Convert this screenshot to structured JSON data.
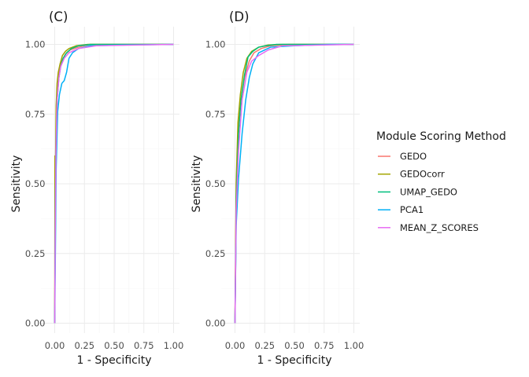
{
  "chart_data": [
    {
      "type": "line",
      "panel_tag": "(C)",
      "xlabel": "1 - Specificity",
      "ylabel": "Sensitivity",
      "xlim": [
        0,
        1
      ],
      "ylim": [
        0,
        1
      ],
      "x_ticks": [
        "0.00",
        "0.25",
        "0.50",
        "0.75",
        "1.00"
      ],
      "y_ticks": [
        "0.00",
        "0.25",
        "0.50",
        "0.75",
        "1.00"
      ],
      "grid": true,
      "series": [
        {
          "name": "GEDO",
          "x": [
            0,
            0.003,
            0.008,
            0.015,
            0.025,
            0.04,
            0.06,
            0.09,
            0.13,
            0.2,
            0.3,
            1
          ],
          "y": [
            0,
            0.28,
            0.48,
            0.74,
            0.85,
            0.91,
            0.94,
            0.965,
            0.98,
            0.99,
            1.0,
            1.0
          ]
        },
        {
          "name": "GEDOcorr",
          "x": [
            0,
            0.002,
            0.006,
            0.012,
            0.02,
            0.03,
            0.045,
            0.065,
            0.09,
            0.12,
            0.18,
            0.28,
            1
          ],
          "y": [
            0,
            0.6,
            0.55,
            0.78,
            0.86,
            0.9,
            0.93,
            0.96,
            0.975,
            0.985,
            0.995,
            1.0,
            1.0
          ]
        },
        {
          "name": "UMAP_GEDO",
          "x": [
            0,
            0.004,
            0.01,
            0.02,
            0.035,
            0.05,
            0.07,
            0.1,
            0.14,
            0.2,
            0.3,
            1
          ],
          "y": [
            0,
            0.35,
            0.6,
            0.8,
            0.88,
            0.92,
            0.95,
            0.97,
            0.985,
            0.995,
            1.0,
            1.0
          ]
        },
        {
          "name": "PCA1",
          "x": [
            0,
            0.005,
            0.012,
            0.025,
            0.04,
            0.06,
            0.08,
            0.1,
            0.12,
            0.15,
            0.2,
            0.3,
            0.6,
            1
          ],
          "y": [
            0,
            0.22,
            0.55,
            0.76,
            0.82,
            0.86,
            0.87,
            0.9,
            0.95,
            0.97,
            0.985,
            0.995,
            0.998,
            1.0
          ]
        },
        {
          "name": "MEAN_Z_SCORES",
          "x": [
            0,
            0.004,
            0.01,
            0.02,
            0.035,
            0.05,
            0.08,
            0.12,
            0.2,
            0.35,
            1
          ],
          "y": [
            0,
            0.3,
            0.6,
            0.8,
            0.88,
            0.92,
            0.95,
            0.97,
            0.985,
            0.995,
            1.0
          ]
        }
      ]
    },
    {
      "type": "line",
      "panel_tag": "(D)",
      "xlabel": "1 - Specificity",
      "ylabel": "Sensitivity",
      "xlim": [
        0,
        1
      ],
      "ylim": [
        0,
        1
      ],
      "x_ticks": [
        "0.00",
        "0.25",
        "0.50",
        "0.75",
        "1.00"
      ],
      "y_ticks": [
        "0.00",
        "0.25",
        "0.50",
        "0.75",
        "1.00"
      ],
      "grid": true,
      "series": [
        {
          "name": "GEDO",
          "x": [
            0,
            0.01,
            0.03,
            0.05,
            0.08,
            0.12,
            0.16,
            0.22,
            0.3,
            0.45,
            1
          ],
          "y": [
            0,
            0.45,
            0.7,
            0.8,
            0.88,
            0.94,
            0.97,
            0.985,
            0.995,
            1.0,
            1.0
          ]
        },
        {
          "name": "GEDOcorr",
          "x": [
            0,
            0.01,
            0.025,
            0.045,
            0.07,
            0.1,
            0.14,
            0.2,
            0.28,
            0.4,
            1
          ],
          "y": [
            0,
            0.5,
            0.72,
            0.82,
            0.9,
            0.95,
            0.975,
            0.99,
            0.998,
            1.0,
            1.0
          ]
        },
        {
          "name": "UMAP_GEDO",
          "x": [
            0,
            0.012,
            0.03,
            0.05,
            0.08,
            0.11,
            0.15,
            0.2,
            0.26,
            0.35,
            1
          ],
          "y": [
            0,
            0.45,
            0.68,
            0.8,
            0.89,
            0.955,
            0.975,
            0.99,
            0.995,
            1.0,
            1.0
          ]
        },
        {
          "name": "PCA1",
          "x": [
            0,
            0.01,
            0.03,
            0.06,
            0.09,
            0.12,
            0.15,
            0.2,
            0.3,
            0.5,
            0.8,
            1
          ],
          "y": [
            0,
            0.35,
            0.52,
            0.68,
            0.8,
            0.88,
            0.93,
            0.97,
            0.99,
            0.995,
            1.0,
            1.0
          ]
        },
        {
          "name": "MEAN_Z_SCORES",
          "x": [
            0,
            0.01,
            0.03,
            0.06,
            0.1,
            0.14,
            0.2,
            0.28,
            0.4,
            1
          ],
          "y": [
            0,
            0.4,
            0.62,
            0.8,
            0.9,
            0.94,
            0.96,
            0.98,
            0.995,
            1.0
          ]
        }
      ]
    }
  ],
  "legend": {
    "title": "Module Scoring Method",
    "placement": "right",
    "items": [
      {
        "label": "GEDO",
        "color": "#F8766D"
      },
      {
        "label": "GEDOcorr",
        "color": "#A3A500"
      },
      {
        "label": "UMAP_GEDO",
        "color": "#00BF7D"
      },
      {
        "label": "PCA1",
        "color": "#00B0F6"
      },
      {
        "label": "MEAN_Z_SCORES",
        "color": "#E76BF3"
      }
    ]
  }
}
